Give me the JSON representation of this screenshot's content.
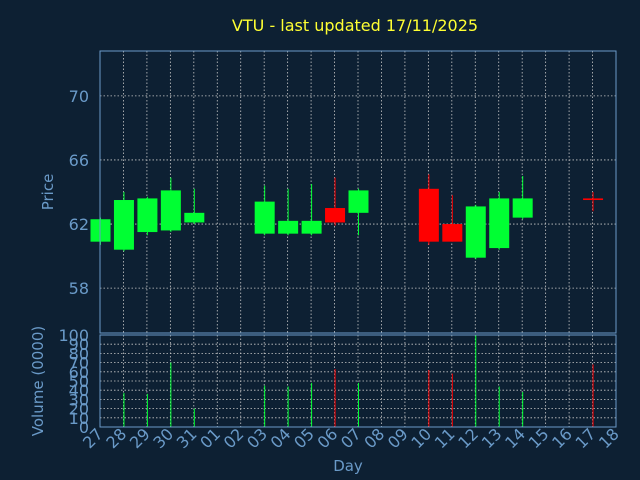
{
  "chart_data": {
    "type": "candlestick",
    "title": "VTU - last updated 17/11/2025",
    "xlabel": "Day",
    "price_panel": {
      "ylabel": "Price",
      "ylim": [
        55.2,
        72.8
      ],
      "yticks": [
        58,
        62,
        66,
        70
      ],
      "grid": true
    },
    "volume_panel": {
      "ylabel": "Volume (0000)",
      "ylim": [
        0,
        100
      ],
      "yticks": [
        0,
        10,
        20,
        30,
        40,
        50,
        60,
        70,
        80,
        90,
        100
      ],
      "grid": true
    },
    "x_tick_labels": [
      "27",
      "28",
      "29",
      "30",
      "31",
      "01",
      "02",
      "03",
      "04",
      "05",
      "06",
      "07",
      "08",
      "09",
      "10",
      "11",
      "12",
      "13",
      "14",
      "15",
      "16",
      "17",
      "18"
    ],
    "colors": {
      "up": "#00ff33",
      "down": "#ff0000",
      "background": "#0d2033",
      "axis": "#6a9ac8",
      "title": "#ffff33"
    },
    "candles": [
      {
        "day": "27",
        "open": 60.9,
        "high": 62.4,
        "low": 60.7,
        "close": 62.3,
        "volume": 0
      },
      {
        "day": "28",
        "open": 60.4,
        "high": 64.0,
        "low": 60.3,
        "close": 63.5,
        "volume": 37
      },
      {
        "day": "29",
        "open": 61.5,
        "high": 63.7,
        "low": 61.3,
        "close": 63.6,
        "volume": 36
      },
      {
        "day": "30",
        "open": 61.6,
        "high": 64.9,
        "low": 61.5,
        "close": 64.1,
        "volume": 70
      },
      {
        "day": "31",
        "open": 62.1,
        "high": 64.2,
        "low": 62.0,
        "close": 62.7,
        "volume": 20
      },
      {
        "day": "03",
        "open": 61.4,
        "high": 64.4,
        "low": 61.3,
        "close": 63.4,
        "volume": 45
      },
      {
        "day": "04",
        "open": 61.4,
        "high": 64.2,
        "low": 61.3,
        "close": 62.2,
        "volume": 44
      },
      {
        "day": "05",
        "open": 61.4,
        "high": 64.5,
        "low": 61.3,
        "close": 62.2,
        "volume": 48
      },
      {
        "day": "06",
        "open": 63.0,
        "high": 64.9,
        "low": 61.9,
        "close": 62.1,
        "volume": 63
      },
      {
        "day": "07",
        "open": 62.7,
        "high": 64.2,
        "low": 61.3,
        "close": 64.1,
        "volume": 48
      },
      {
        "day": "10",
        "open": 64.2,
        "high": 65.1,
        "low": 60.7,
        "close": 60.9,
        "volume": 62
      },
      {
        "day": "11",
        "open": 62.0,
        "high": 63.8,
        "low": 60.9,
        "close": 60.9,
        "volume": 58
      },
      {
        "day": "12",
        "open": 59.9,
        "high": 63.2,
        "low": 59.8,
        "close": 63.1,
        "volume": 100
      },
      {
        "day": "13",
        "open": 60.5,
        "high": 64.0,
        "low": 60.4,
        "close": 63.6,
        "volume": 44
      },
      {
        "day": "14",
        "open": 62.4,
        "high": 65.0,
        "low": 62.3,
        "close": 63.6,
        "volume": 38
      },
      {
        "day": "17",
        "open": 63.6,
        "high": 64.0,
        "low": 62.8,
        "close": 63.5,
        "volume": 68
      }
    ]
  }
}
